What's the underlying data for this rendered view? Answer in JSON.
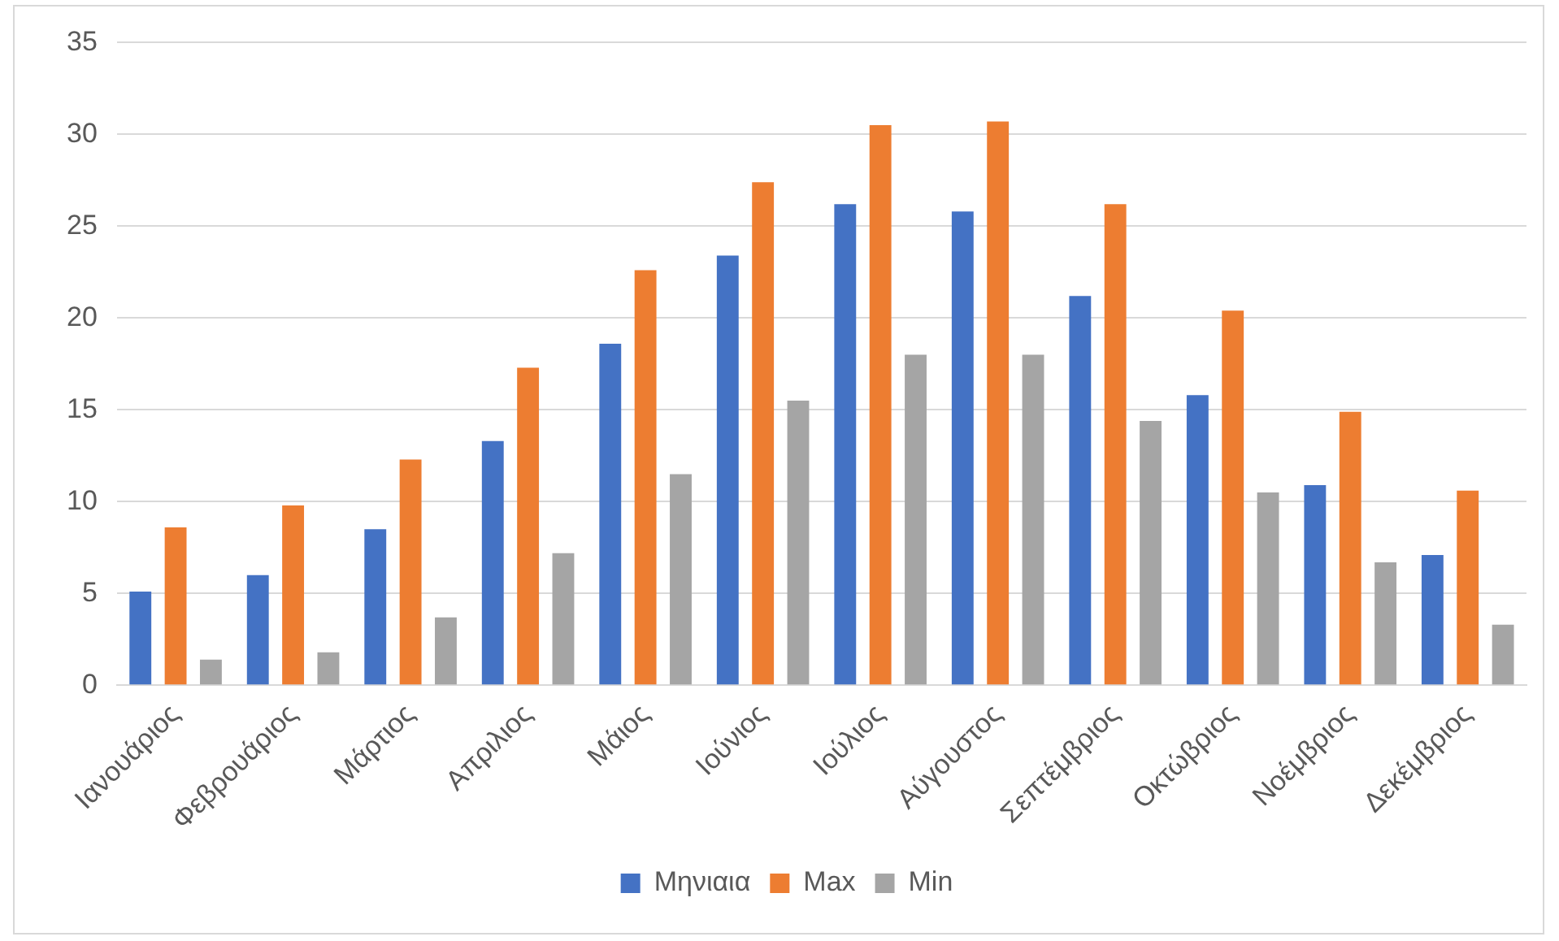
{
  "chart_data": {
    "type": "bar",
    "categories": [
      "Ιανουάριος",
      "Φεβρουάριος",
      "Μάρτιος",
      "Απριλιος",
      "Μάιος",
      "Ιούνιος",
      "Ιούλιος",
      "Αύγουστος",
      "Σεπτέμβριος",
      "Οκτώβριος",
      "Νοέμβριος",
      "Δεκέμβριος"
    ],
    "series": [
      {
        "name": "Μηνιαια",
        "color": "#4472c4",
        "values": [
          5.1,
          6.0,
          8.5,
          13.3,
          18.6,
          23.4,
          26.2,
          25.8,
          21.2,
          15.8,
          10.9,
          7.1
        ]
      },
      {
        "name": "Max",
        "color": "#ed7d31",
        "values": [
          8.6,
          9.8,
          12.3,
          17.3,
          22.6,
          27.4,
          30.5,
          30.7,
          26.2,
          20.4,
          14.9,
          10.6
        ]
      },
      {
        "name": "Min",
        "color": "#a5a5a5",
        "values": [
          1.4,
          1.8,
          3.7,
          7.2,
          11.5,
          15.5,
          18.0,
          18.0,
          14.4,
          10.5,
          6.7,
          3.3
        ]
      }
    ],
    "ylim": [
      0,
      35
    ],
    "yticks": [
      0,
      5,
      10,
      15,
      20,
      25,
      30,
      35
    ],
    "grid": "y",
    "legend": "bottom"
  }
}
